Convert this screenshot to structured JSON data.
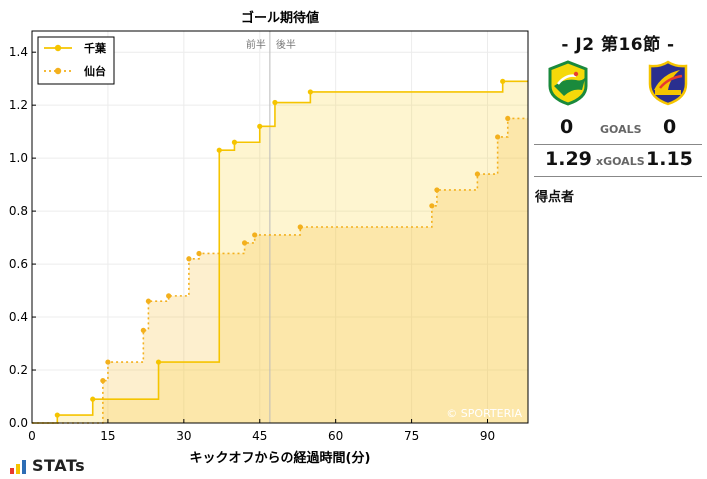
{
  "chart_data": {
    "type": "line",
    "title": "ゴール期待値",
    "xlabel": "キックオフからの経過時間(分)",
    "ylabel": "",
    "xlim": [
      0,
      98
    ],
    "ylim": [
      0,
      1.48
    ],
    "xticks": [
      0,
      15,
      30,
      45,
      60,
      75,
      90
    ],
    "yticks": [
      0.0,
      0.2,
      0.4,
      0.6,
      0.8,
      1.0,
      1.2,
      1.4
    ],
    "halftime": 47,
    "halftime_labels": [
      "前半",
      "後半"
    ],
    "watermark": "© SPORTERIA",
    "legend_position": "top-left",
    "grid": true,
    "series": [
      {
        "name": "千葉",
        "color": "#f5c400",
        "line_style": "solid",
        "shots": [
          [
            5,
            0.03
          ],
          [
            12,
            0.09
          ],
          [
            25,
            0.23
          ],
          [
            37,
            1.03
          ],
          [
            40,
            1.06
          ],
          [
            45,
            1.12
          ],
          [
            48,
            1.21
          ],
          [
            55,
            1.25
          ],
          [
            93,
            1.29
          ]
        ],
        "final": 1.29
      },
      {
        "name": "仙台",
        "color": "#f3b01d",
        "line_style": "dotted",
        "shots": [
          [
            14,
            0.16
          ],
          [
            15,
            0.23
          ],
          [
            22,
            0.35
          ],
          [
            23,
            0.46
          ],
          [
            27,
            0.48
          ],
          [
            31,
            0.62
          ],
          [
            33,
            0.64
          ],
          [
            42,
            0.68
          ],
          [
            44,
            0.71
          ],
          [
            53,
            0.74
          ],
          [
            79,
            0.82
          ],
          [
            80,
            0.88
          ],
          [
            88,
            0.94
          ],
          [
            92,
            1.08
          ],
          [
            94,
            1.15
          ]
        ],
        "final": 1.15
      }
    ]
  },
  "match": {
    "title": "- J2 第16節 -",
    "home_goals": "0",
    "away_goals": "0",
    "goals_label": "GOALS",
    "home_xg": "1.29",
    "away_xg": "1.15",
    "xgoals_label": "xGOALS",
    "scorers_title": "得点者"
  },
  "logo": {
    "text": "STATs",
    "bar_colors": [
      "#e8382f",
      "#f5c400",
      "#2d6db5"
    ]
  }
}
